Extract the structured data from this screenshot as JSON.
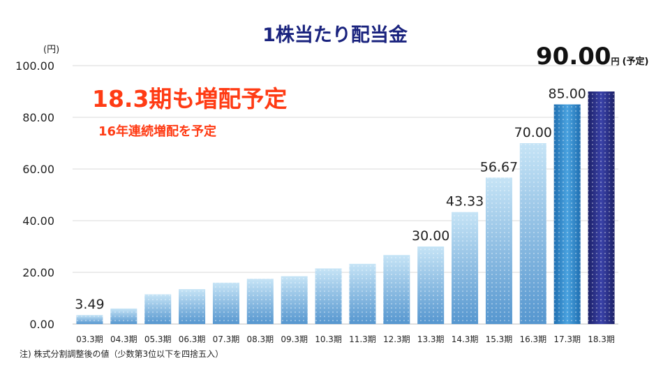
{
  "title": "1株当たり配当金",
  "unit": "(円)",
  "headline": "18.3期も増配予定",
  "subheadline": "16年連続増配を予定",
  "forecast": {
    "value": "90.00",
    "unit": "円",
    "tag": "(予定)"
  },
  "footnote": "注) 株式分割調整後の値（少数第3位以下を四捨五入）",
  "colors": {
    "bar_light_top": "#b9dcf2",
    "bar_light_bottom": "#5b9ed3",
    "bar_2017": "#2f86c8",
    "bar_2018": "#242a78",
    "headline": "#ff3b14",
    "title": "#1a237e"
  },
  "chart_data": {
    "type": "bar",
    "categories": [
      "03.3期",
      "04.3期",
      "05.3期",
      "06.3期",
      "07.3期",
      "08.3期",
      "09.3期",
      "10.3期",
      "11.3期",
      "12.3期",
      "13.3期",
      "14.3期",
      "15.3期",
      "16.3期",
      "17.3期",
      "18.3期"
    ],
    "values": [
      3.49,
      6.0,
      11.5,
      13.5,
      16.0,
      17.5,
      18.5,
      21.5,
      23.3,
      26.7,
      30.0,
      43.33,
      56.67,
      70.0,
      85.0,
      90.0
    ],
    "data_labels": [
      "3.49",
      "",
      "",
      "",
      "",
      "",
      "",
      "",
      "",
      "",
      "30.00",
      "43.33",
      "56.67",
      "70.00",
      "85.00",
      ""
    ],
    "yticks": [
      "0.00",
      "20.00",
      "40.00",
      "60.00",
      "80.00",
      "100.00"
    ],
    "ylim": [
      0,
      100
    ],
    "grid": true,
    "legend": "none"
  }
}
